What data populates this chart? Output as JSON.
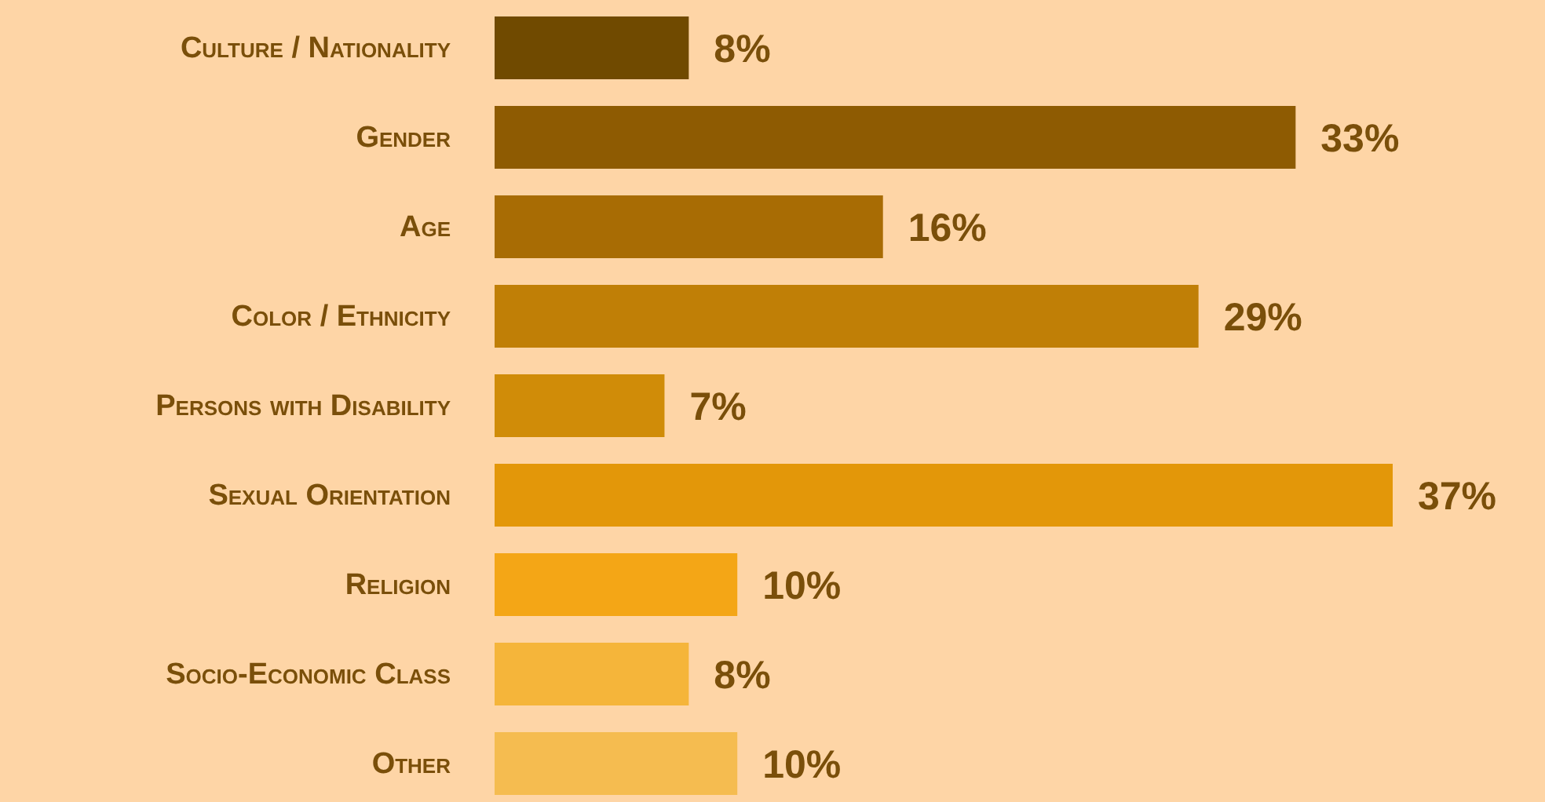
{
  "chart_data": {
    "type": "bar",
    "orientation": "horizontal",
    "categories": [
      "Culture / Nationality",
      "Gender",
      "Age",
      "Color / Ethnicity",
      "Persons with Disability",
      "Sexual Orientation",
      "Religion",
      "Socio-Economic Class",
      "Other"
    ],
    "values": [
      8,
      33,
      16,
      29,
      7,
      37,
      10,
      8,
      10
    ],
    "colors": [
      "#704a00",
      "#8e5b02",
      "#a86c04",
      "#c07f06",
      "#d08c08",
      "#e39709",
      "#f4a616",
      "#f5b53a",
      "#f5bc50"
    ],
    "value_labels": [
      "8%",
      "33%",
      "16%",
      "29%",
      "7%",
      "37%",
      "10%",
      "8%",
      "10%"
    ]
  }
}
